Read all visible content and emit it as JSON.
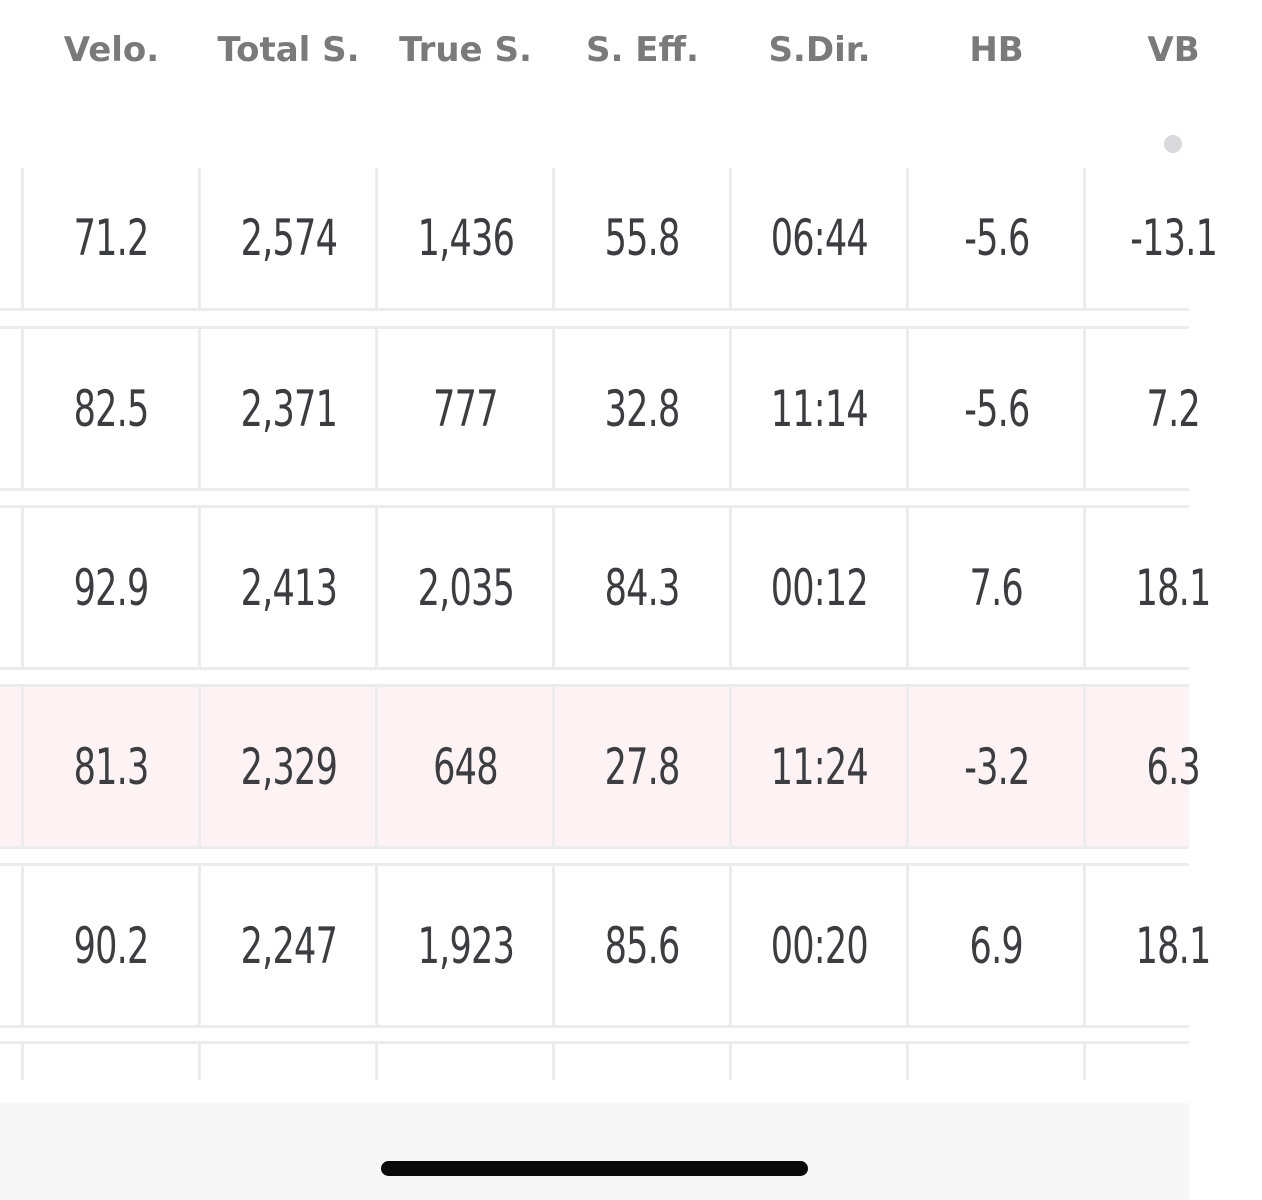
{
  "table": {
    "columns": [
      "Velo.",
      "Total S.",
      "True S.",
      "S. Eff.",
      "S.Dir.",
      "HB",
      "VB"
    ],
    "rows": [
      {
        "cells": [
          "71.2",
          "2,574",
          "1,436",
          "55.8",
          "06:44",
          "-5.6",
          "-13.1"
        ],
        "highlighted": false
      },
      {
        "cells": [
          "82.5",
          "2,371",
          "777",
          "32.8",
          "11:14",
          "-5.6",
          "7.2"
        ],
        "highlighted": false
      },
      {
        "cells": [
          "92.9",
          "2,413",
          "2,035",
          "84.3",
          "00:12",
          "7.6",
          "18.1"
        ],
        "highlighted": false
      },
      {
        "cells": [
          "81.3",
          "2,329",
          "648",
          "27.8",
          "11:24",
          "-3.2",
          "6.3"
        ],
        "highlighted": true
      },
      {
        "cells": [
          "90.2",
          "2,247",
          "1,923",
          "85.6",
          "00:20",
          "6.9",
          "18.1"
        ],
        "highlighted": false
      }
    ]
  },
  "colors": {
    "header_text": "#7a7a7c",
    "cell_text": "#3c3d41",
    "grid": "#ececed",
    "highlight_row": "#fdf3f4",
    "bottom_bar": "#f7f7f7",
    "home_indicator": "#0a0a0a"
  }
}
